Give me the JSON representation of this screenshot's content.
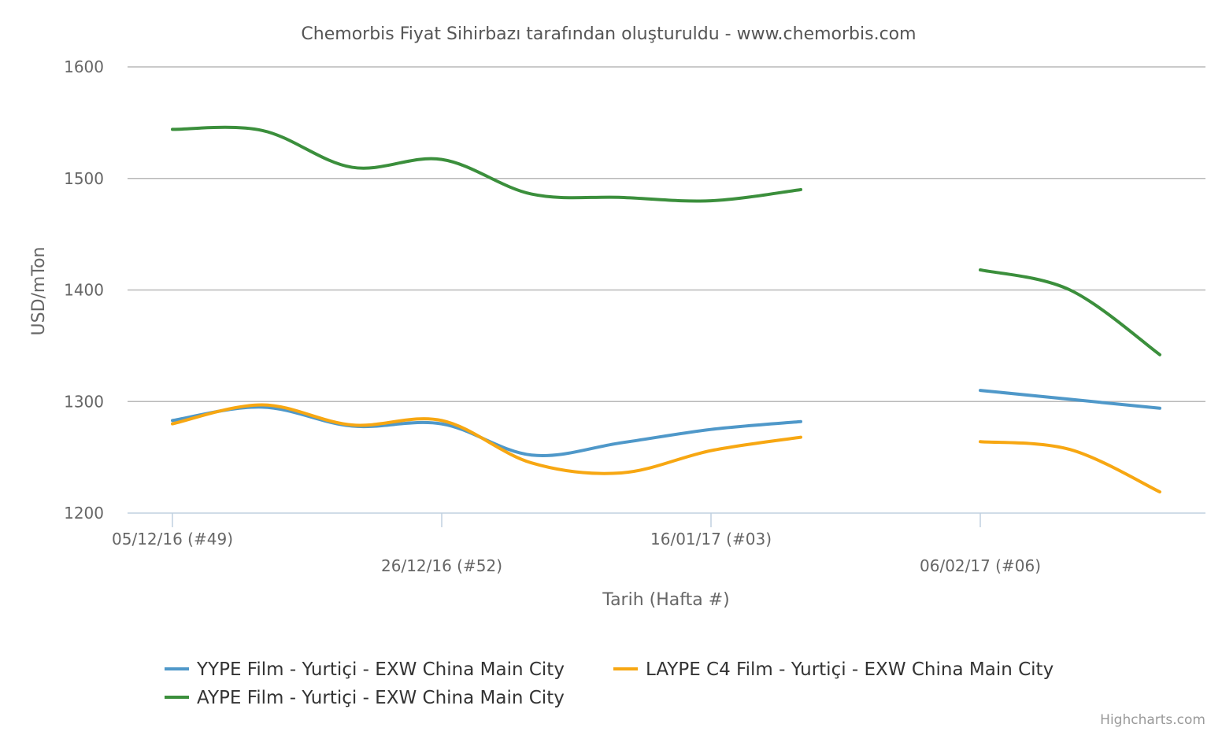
{
  "chart_data": {
    "type": "line",
    "title": "Chemorbis Fiyat Sihirbazı tarafından oluşturuldu - www.chemorbis.com",
    "xlabel": "Tarih (Hafta #)",
    "ylabel": "USD/mTon",
    "ylim": [
      1200,
      1600
    ],
    "yticks": [
      1200,
      1300,
      1400,
      1500,
      1600
    ],
    "week_count": 12,
    "xtick_labels": [
      {
        "week": 0,
        "label": "05/12/16 (#49)"
      },
      {
        "week": 3,
        "label": "26/12/16 (#52)"
      },
      {
        "week": 6,
        "label": "16/01/17 (#03)"
      },
      {
        "week": 9,
        "label": "06/02/17 (#06)"
      }
    ],
    "grid": true,
    "legend_position": "bottom",
    "series": [
      {
        "name": "YYPE Film - Yurtiçi - EXW China Main City",
        "color": "#4f98c9",
        "values": [
          1283,
          1295,
          1278,
          1280,
          1252,
          1263,
          1275,
          1282,
          null,
          1310,
          1302,
          1294
        ]
      },
      {
        "name": "LAYPE C4 Film - Yurtiçi - EXW China Main City",
        "color": "#f7a712",
        "values": [
          1280,
          1297,
          1279,
          1283,
          1245,
          1236,
          1256,
          1268,
          null,
          1264,
          1257,
          1219
        ]
      },
      {
        "name": "AYPE Film - Yurtiçi - EXW China Main City",
        "color": "#3b8f3c",
        "values": [
          1544,
          1543,
          1510,
          1517,
          1486,
          1483,
          1480,
          1490,
          null,
          1418,
          1400,
          1342
        ]
      }
    ]
  },
  "credit": "Highcharts.com"
}
